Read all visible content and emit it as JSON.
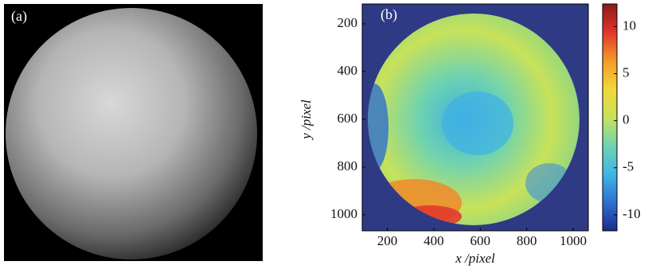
{
  "chart_data": [
    {
      "type": "image",
      "label": "(a)"
    },
    {
      "type": "heatmap",
      "label": "(b)",
      "xlabel": "x /pixel",
      "ylabel": "y /pixel",
      "xlim": [
        92,
        1065
      ],
      "xticks": [
        200,
        400,
        600,
        800,
        1000
      ],
      "ylim": [
        1067,
        117
      ],
      "yticks": [
        200,
        400,
        600,
        800,
        1000
      ],
      "colorbar": {
        "lim": [
          -11.7,
          12.4
        ],
        "ticks": [
          -10,
          -5,
          0,
          5,
          10
        ],
        "colormap": [
          "#1b2a8c",
          "#2f6fd0",
          "#3fb7e6",
          "#6fd3b0",
          "#c8e25a",
          "#f2d73a",
          "#f39a2a",
          "#e2352a",
          "#8c1a1a"
        ]
      }
    }
  ]
}
